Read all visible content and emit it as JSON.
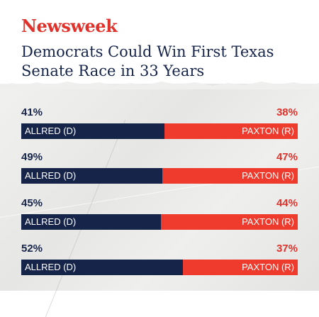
{
  "brand": {
    "logo": "Newsweek",
    "color": "#e0322b"
  },
  "colors": {
    "dem": "#16244a",
    "rep": "#ef3b2d",
    "text": "#16244a"
  },
  "chart_data": {
    "type": "bar",
    "title": "Democrats Could Win First Texas Senate Race in 33 Years",
    "orientation": "horizontal-stacked",
    "series": [
      {
        "name": "ALLRED (D)",
        "values": [
          41,
          49,
          45,
          52
        ]
      },
      {
        "name": "PAXTON (R)",
        "values": [
          38,
          47,
          44,
          37
        ]
      }
    ],
    "rows": [
      {
        "dem_pct": "41%",
        "rep_pct": "38%",
        "dem_label": "ALLRED (D)",
        "rep_label": "PAXTON (R)"
      },
      {
        "dem_pct": "49%",
        "rep_pct": "47%",
        "dem_label": "ALLRED (D)",
        "rep_label": "PAXTON (R)"
      },
      {
        "dem_pct": "45%",
        "rep_pct": "44%",
        "dem_label": "ALLRED (D)",
        "rep_label": "PAXTON (R)"
      },
      {
        "dem_pct": "52%",
        "rep_pct": "37%",
        "dem_label": "ALLRED (D)",
        "rep_label": "PAXTON (R)"
      }
    ]
  }
}
